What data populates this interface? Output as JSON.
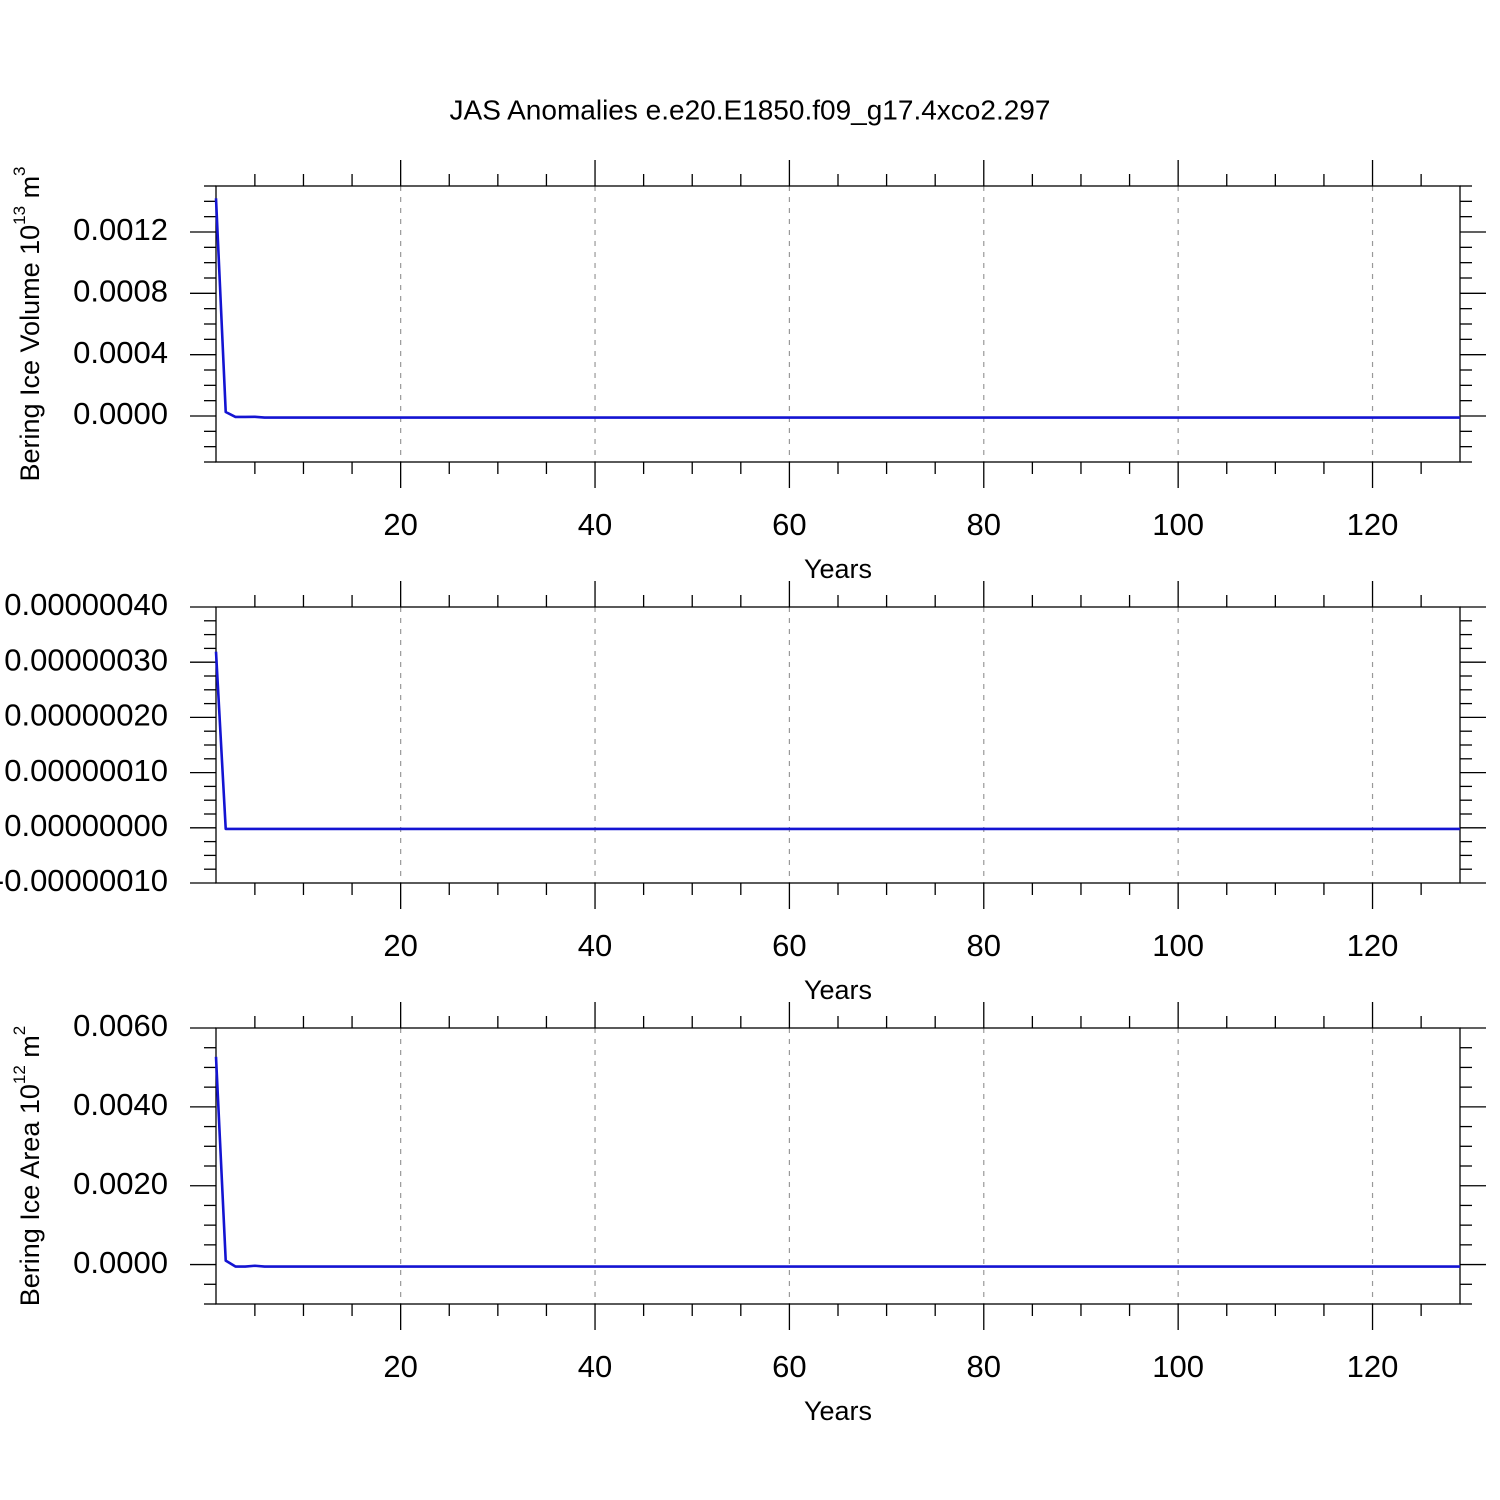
{
  "chart_data": [
    {
      "type": "line",
      "title": "JAS Anomalies e.e20.E1850.f09_g17.4xco2.297",
      "ylabel_parts": [
        "Bering Ice Volume 10",
        "13",
        " m",
        "3"
      ],
      "xlabel": "Years",
      "xlim": [
        1,
        129
      ],
      "xticks": [
        20,
        40,
        60,
        80,
        100,
        120
      ],
      "ylim": [
        -0.0003,
        0.0015
      ],
      "yticks": [
        {
          "value": 0,
          "label": "0.0000"
        },
        {
          "value": 0.0004,
          "label": "0.0004"
        },
        {
          "value": 0.0008,
          "label": "0.0008"
        },
        {
          "value": 0.0012,
          "label": "0.0012"
        }
      ],
      "grid": true,
      "color": "#1414d2",
      "x": [
        1,
        2,
        3,
        4,
        5,
        6,
        7,
        8,
        9,
        10,
        11,
        12,
        13,
        14,
        15,
        16,
        17,
        18,
        19,
        20,
        21,
        22,
        23,
        24,
        25,
        26,
        27,
        28,
        29,
        30,
        31,
        32,
        33,
        34,
        35,
        36,
        37,
        38,
        39,
        40,
        41,
        42,
        43,
        44,
        45,
        46,
        47,
        48,
        49,
        50,
        51,
        52,
        53,
        54,
        55,
        56,
        57,
        58,
        59,
        60,
        61,
        62,
        63,
        64,
        65,
        66,
        67,
        68,
        69,
        70,
        71,
        72,
        73,
        74,
        75,
        76,
        77,
        78,
        79,
        80,
        81,
        82,
        83,
        84,
        85,
        86,
        87,
        88,
        89,
        90,
        91,
        92,
        93,
        94,
        95,
        96,
        97,
        98,
        99,
        100,
        101,
        102,
        103,
        104,
        105,
        106,
        107,
        108,
        109,
        110,
        111,
        112,
        113,
        114,
        115,
        116,
        117,
        118,
        119,
        120,
        121,
        122,
        123,
        124,
        125,
        126,
        127,
        128,
        129
      ],
      "values": [
        0.00142,
        2.6e-05,
        -6e-06,
        -6e-06,
        -5e-06,
        -1e-05,
        -1e-05,
        -1e-05,
        -1e-05,
        -1e-05,
        -1e-05,
        -1e-05,
        -1e-05,
        -1e-05,
        -1e-05,
        -1e-05,
        -1e-05,
        -1e-05,
        -1e-05,
        -1e-05,
        -1e-05,
        -1e-05,
        -1e-05,
        -1e-05,
        -1e-05,
        -1e-05,
        -1e-05,
        -1e-05,
        -1e-05,
        -1e-05,
        -1e-05,
        -1e-05,
        -1e-05,
        -1e-05,
        -1e-05,
        -1e-05,
        -1e-05,
        -1e-05,
        -1e-05,
        -1e-05,
        -1e-05,
        -1e-05,
        -1e-05,
        -1e-05,
        -1e-05,
        -1e-05,
        -1e-05,
        -1e-05,
        -1e-05,
        -1e-05,
        -1e-05,
        -1e-05,
        -1e-05,
        -1e-05,
        -1e-05,
        -1e-05,
        -1e-05,
        -1e-05,
        -1e-05,
        -1e-05,
        -1e-05,
        -1e-05,
        -1e-05,
        -1e-05,
        -1e-05,
        -1e-05,
        -1e-05,
        -1e-05,
        -1e-05,
        -1e-05,
        -1e-05,
        -1e-05,
        -1e-05,
        -1e-05,
        -1e-05,
        -1e-05,
        -1e-05,
        -1e-05,
        -1e-05,
        -1e-05,
        -1e-05,
        -1e-05,
        -1e-05,
        -1e-05,
        -1e-05,
        -1e-05,
        -1e-05,
        -1e-05,
        -1e-05,
        -1e-05,
        -1e-05,
        -1e-05,
        -1e-05,
        -1e-05,
        -1e-05,
        -1e-05,
        -1e-05,
        -1e-05,
        -1e-05,
        -1e-05,
        -1e-05,
        -1e-05,
        -1e-05,
        -1e-05,
        -1e-05,
        -1e-05,
        -1e-05,
        -1e-05,
        -1e-05,
        -1e-05,
        -1e-05,
        -1e-05,
        -1e-05,
        -1e-05,
        -1e-05,
        -1e-05,
        -1e-05,
        -1e-05,
        -1e-05,
        -1e-05,
        -1e-05,
        -1e-05,
        -1e-05,
        -1e-05,
        -1e-05,
        -1e-05,
        -1e-05,
        -1e-05,
        -1e-05
      ]
    },
    {
      "type": "line",
      "xlabel": "Years",
      "xlim": [
        1,
        129
      ],
      "xticks": [
        20,
        40,
        60,
        80,
        100,
        120
      ],
      "ylim": [
        -1e-07,
        4e-07
      ],
      "yticks": [
        {
          "value": -1e-07,
          "label": "-0.00000010"
        },
        {
          "value": 0,
          "label": "0.00000000"
        },
        {
          "value": 1e-07,
          "label": "0.00000010"
        },
        {
          "value": 2e-07,
          "label": "0.00000020"
        },
        {
          "value": 3e-07,
          "label": "0.00000030"
        },
        {
          "value": 4e-07,
          "label": "0.00000040"
        }
      ],
      "grid": true,
      "color": "#1414d2",
      "x": [
        1,
        2,
        3,
        4,
        5,
        6,
        7,
        8,
        9,
        10,
        11,
        12,
        13,
        14,
        15,
        16,
        17,
        18,
        19,
        20,
        21,
        22,
        23,
        24,
        25,
        26,
        27,
        28,
        29,
        30,
        31,
        32,
        33,
        34,
        35,
        36,
        37,
        38,
        39,
        40,
        41,
        42,
        43,
        44,
        45,
        46,
        47,
        48,
        49,
        50,
        51,
        52,
        53,
        54,
        55,
        56,
        57,
        58,
        59,
        60,
        61,
        62,
        63,
        64,
        65,
        66,
        67,
        68,
        69,
        70,
        71,
        72,
        73,
        74,
        75,
        76,
        77,
        78,
        79,
        80,
        81,
        82,
        83,
        84,
        85,
        86,
        87,
        88,
        89,
        90,
        91,
        92,
        93,
        94,
        95,
        96,
        97,
        98,
        99,
        100,
        101,
        102,
        103,
        104,
        105,
        106,
        107,
        108,
        109,
        110,
        111,
        112,
        113,
        114,
        115,
        116,
        117,
        118,
        119,
        120,
        121,
        122,
        123,
        124,
        125,
        126,
        127,
        128,
        129
      ],
      "values": [
        3.19e-07,
        -2e-09,
        -2e-09,
        -2e-09,
        -2e-09,
        -2e-09,
        -2e-09,
        -2e-09,
        -2e-09,
        -2e-09,
        -2e-09,
        -2e-09,
        -2e-09,
        -2e-09,
        -2e-09,
        -2e-09,
        -2e-09,
        -2e-09,
        -2e-09,
        -2e-09,
        -2e-09,
        -2e-09,
        -2e-09,
        -2e-09,
        -2e-09,
        -2e-09,
        -2e-09,
        -2e-09,
        -2e-09,
        -2e-09,
        -2e-09,
        -2e-09,
        -2e-09,
        -2e-09,
        -2e-09,
        -2e-09,
        -2e-09,
        -2e-09,
        -2e-09,
        -2e-09,
        -2e-09,
        -2e-09,
        -2e-09,
        -2e-09,
        -2e-09,
        -2e-09,
        -2e-09,
        -2e-09,
        -2e-09,
        -2e-09,
        -2e-09,
        -2e-09,
        -2e-09,
        -2e-09,
        -2e-09,
        -2e-09,
        -2e-09,
        -2e-09,
        -2e-09,
        -2e-09,
        -2e-09,
        -2e-09,
        -2e-09,
        -2e-09,
        -2e-09,
        -2e-09,
        -2e-09,
        -2e-09,
        -2e-09,
        -2e-09,
        -2e-09,
        -2e-09,
        -2e-09,
        -2e-09,
        -2e-09,
        -2e-09,
        -2e-09,
        -2e-09,
        -2e-09,
        -2e-09,
        -2e-09,
        -2e-09,
        -2e-09,
        -2e-09,
        -2e-09,
        -2e-09,
        -2e-09,
        -2e-09,
        -2e-09,
        -2e-09,
        -2e-09,
        -2e-09,
        -2e-09,
        -2e-09,
        -2e-09,
        -2e-09,
        -2e-09,
        -2e-09,
        -2e-09,
        -2e-09,
        -2e-09,
        -2e-09,
        -2e-09,
        -2e-09,
        -2e-09,
        -2e-09,
        -2e-09,
        -2e-09,
        -2e-09,
        -2e-09,
        -2e-09,
        -2e-09,
        -2e-09,
        -2e-09,
        -2e-09,
        -2e-09,
        -2e-09,
        -2e-09,
        -2e-09,
        -2e-09,
        -2e-09,
        -2e-09,
        -2e-09,
        -2e-09,
        -2e-09,
        -2e-09,
        -2e-09,
        -2e-09,
        -2e-09
      ]
    },
    {
      "type": "line",
      "ylabel_parts": [
        "Bering Ice Area 10",
        "12",
        " m",
        "2"
      ],
      "xlabel": "Years",
      "xlim": [
        1,
        129
      ],
      "xticks": [
        20,
        40,
        60,
        80,
        100,
        120
      ],
      "ylim": [
        -0.001,
        0.006
      ],
      "yticks": [
        {
          "value": 0,
          "label": "0.0000"
        },
        {
          "value": 0.002,
          "label": "0.0020"
        },
        {
          "value": 0.004,
          "label": "0.0040"
        },
        {
          "value": 0.006,
          "label": "0.0060"
        }
      ],
      "grid": true,
      "color": "#1414d2",
      "x": [
        1,
        2,
        3,
        4,
        5,
        6,
        7,
        8,
        9,
        10,
        11,
        12,
        13,
        14,
        15,
        16,
        17,
        18,
        19,
        20,
        21,
        22,
        23,
        24,
        25,
        26,
        27,
        28,
        29,
        30,
        31,
        32,
        33,
        34,
        35,
        36,
        37,
        38,
        39,
        40,
        41,
        42,
        43,
        44,
        45,
        46,
        47,
        48,
        49,
        50,
        51,
        52,
        53,
        54,
        55,
        56,
        57,
        58,
        59,
        60,
        61,
        62,
        63,
        64,
        65,
        66,
        67,
        68,
        69,
        70,
        71,
        72,
        73,
        74,
        75,
        76,
        77,
        78,
        79,
        80,
        81,
        82,
        83,
        84,
        85,
        86,
        87,
        88,
        89,
        90,
        91,
        92,
        93,
        94,
        95,
        96,
        97,
        98,
        99,
        100,
        101,
        102,
        103,
        104,
        105,
        106,
        107,
        108,
        109,
        110,
        111,
        112,
        113,
        114,
        115,
        116,
        117,
        118,
        119,
        120,
        121,
        122,
        123,
        124,
        125,
        126,
        127,
        128,
        129
      ],
      "values": [
        0.00527,
        0.0001,
        -5e-05,
        -5e-05,
        -3e-05,
        -5e-05,
        -5e-05,
        -5e-05,
        -5e-05,
        -5e-05,
        -5e-05,
        -5e-05,
        -5e-05,
        -5e-05,
        -5e-05,
        -5e-05,
        -5e-05,
        -5e-05,
        -5e-05,
        -5e-05,
        -5e-05,
        -5e-05,
        -5e-05,
        -5e-05,
        -5e-05,
        -5e-05,
        -5e-05,
        -5e-05,
        -5e-05,
        -5e-05,
        -5e-05,
        -5e-05,
        -5e-05,
        -5e-05,
        -5e-05,
        -5e-05,
        -5e-05,
        -5e-05,
        -5e-05,
        -5e-05,
        -5e-05,
        -5e-05,
        -5e-05,
        -5e-05,
        -5e-05,
        -5e-05,
        -5e-05,
        -5e-05,
        -5e-05,
        -5e-05,
        -5e-05,
        -5e-05,
        -5e-05,
        -5e-05,
        -5e-05,
        -5e-05,
        -5e-05,
        -5e-05,
        -5e-05,
        -5e-05,
        -5e-05,
        -5e-05,
        -5e-05,
        -5e-05,
        -5e-05,
        -5e-05,
        -5e-05,
        -5e-05,
        -5e-05,
        -5e-05,
        -5e-05,
        -5e-05,
        -5e-05,
        -5e-05,
        -5e-05,
        -5e-05,
        -5e-05,
        -5e-05,
        -5e-05,
        -5e-05,
        -5e-05,
        -5e-05,
        -5e-05,
        -5e-05,
        -5e-05,
        -5e-05,
        -5e-05,
        -5e-05,
        -5e-05,
        -5e-05,
        -5e-05,
        -5e-05,
        -5e-05,
        -5e-05,
        -5e-05,
        -5e-05,
        -5e-05,
        -5e-05,
        -5e-05,
        -5e-05,
        -5e-05,
        -5e-05,
        -5e-05,
        -5e-05,
        -5e-05,
        -5e-05,
        -5e-05,
        -5e-05,
        -5e-05,
        -5e-05,
        -5e-05,
        -5e-05,
        -5e-05,
        -5e-05,
        -5e-05,
        -5e-05,
        -5e-05,
        -5e-05,
        -5e-05,
        -5e-05,
        -5e-05,
        -5e-05,
        -5e-05,
        -5e-05,
        -5e-05,
        -5e-05,
        -5e-05,
        -5e-05,
        -5e-05
      ]
    }
  ]
}
